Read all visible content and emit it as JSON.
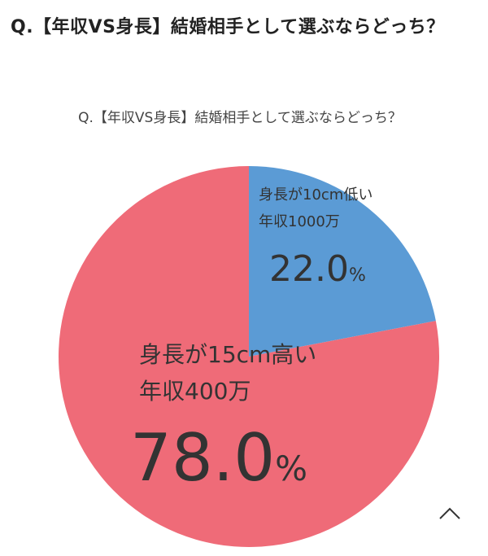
{
  "page": {
    "title": "Q.【年収VS身長】結婚相手として選ぶならどっち？"
  },
  "chart_data": {
    "type": "pie",
    "title": "Q.【年収VS身長】結婚相手として選ぶならどっち？",
    "slices": [
      {
        "label_lines": [
          "身長が10cm低い",
          "年収1000万"
        ],
        "value": 22.0,
        "value_label": "22.0",
        "unit": "%",
        "color": "#5b9bd5"
      },
      {
        "label_lines": [
          "身長が15cm高い",
          "年収400万"
        ],
        "value": 78.0,
        "value_label": "78.0",
        "unit": "%",
        "color": "#ef6b78"
      }
    ]
  },
  "ui": {
    "scroll_top_icon": "chevron-up-icon"
  }
}
